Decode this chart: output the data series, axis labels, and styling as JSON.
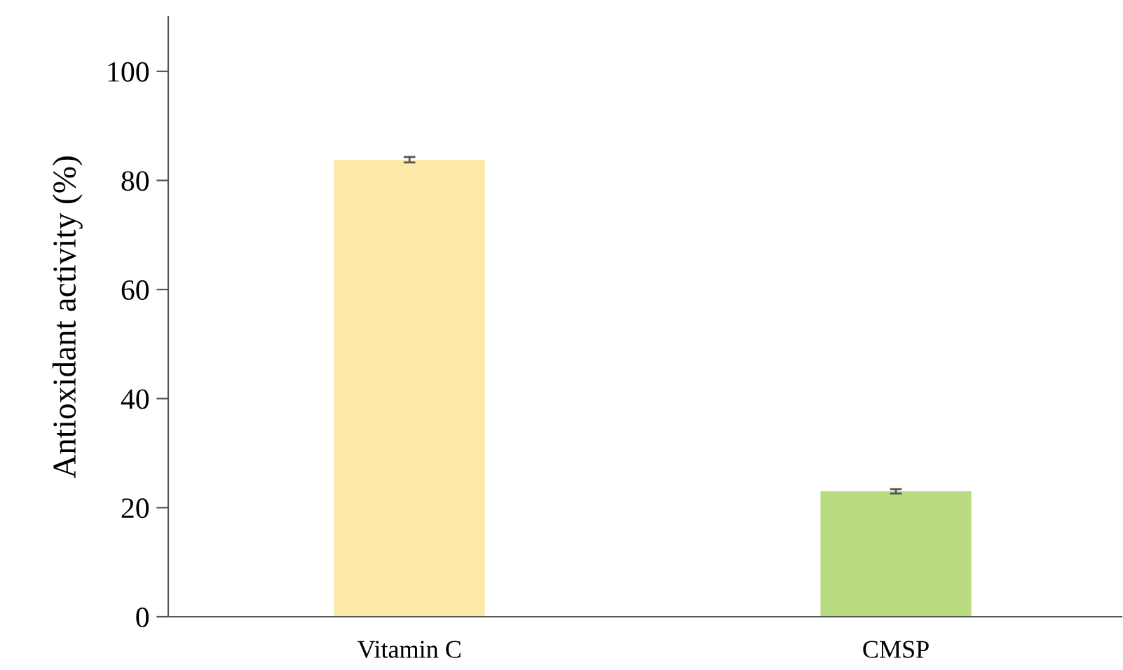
{
  "chart_data": {
    "type": "bar",
    "ylabel": "Antioxidant activity (%)",
    "categories": [
      "Vitamin C",
      "CMSP"
    ],
    "values": [
      83.8,
      23.0
    ],
    "errors": [
      0.5,
      0.4
    ],
    "colors": [
      "#fde9a9",
      "#b9db7f"
    ],
    "ylim": [
      0,
      110
    ],
    "yticks": [
      0,
      20,
      40,
      60,
      80,
      100
    ],
    "grid": false,
    "legend": false
  }
}
